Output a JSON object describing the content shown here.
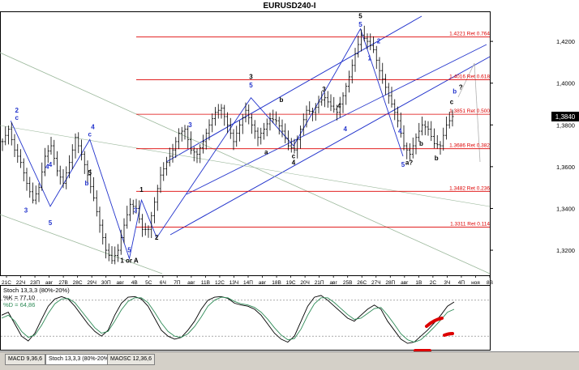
{
  "title": "EURUSD240-I",
  "colors": {
    "fib": "#dd0000",
    "wave": "#2233cc",
    "channel": "#2233cc",
    "candle": "#000000",
    "stoch_k": "#000000",
    "stoch_d": "#2e8b57",
    "marker": "#dd0000",
    "current": "#000000"
  },
  "chart_data": [
    {
      "type": "ohlc",
      "symbol": "EURUSD240-I",
      "ylim": [
        1.308,
        1.434
      ],
      "y_ticks": [
        "1,4200",
        "1,4000",
        "1,3800",
        "1,3600",
        "1,3400",
        "1,3200"
      ],
      "y_tick_values": [
        1.42,
        1.4,
        1.38,
        1.36,
        1.34,
        1.32
      ],
      "current_price": {
        "label": "1,3840",
        "value": 1.384
      },
      "x_ticks": [
        "21С",
        "22Ч",
        "23П",
        "авг",
        "27В",
        "28С",
        "29Ч",
        "30П",
        "авг",
        "4В",
        "5С",
        "6Ч",
        "7П",
        "авг",
        "11В",
        "12С",
        "13Ч",
        "14П",
        "авг",
        "18В",
        "19С",
        "20Ч",
        "21П",
        "авг",
        "25В",
        "26С",
        "27Ч",
        "28П",
        "авг",
        "1В",
        "2С",
        "3Ч",
        "4П",
        "ноя",
        "8В"
      ],
      "fib_levels": [
        {
          "label": "1.4221 Ret 0.764",
          "value": 1.4221
        },
        {
          "label": "1.4016 Ret 0.618",
          "value": 1.4016
        },
        {
          "label": "1.3851 Ret 0.500",
          "value": 1.3851
        },
        {
          "label": "1.3686 Ret 0.382",
          "value": 1.3686
        },
        {
          "label": "1.3482 Ret 0.236",
          "value": 1.3482
        },
        {
          "label": "1.3311 Ret 0.114",
          "value": 1.3311
        }
      ],
      "close_path": [
        [
          0,
          1.372
        ],
        [
          2,
          1.378
        ],
        [
          4,
          1.368
        ],
        [
          6,
          1.362
        ],
        [
          8,
          1.352
        ],
        [
          10,
          1.344
        ],
        [
          12,
          1.35
        ],
        [
          14,
          1.365
        ],
        [
          16,
          1.37
        ],
        [
          18,
          1.358
        ],
        [
          20,
          1.352
        ],
        [
          22,
          1.362
        ],
        [
          24,
          1.374
        ],
        [
          26,
          1.366
        ],
        [
          28,
          1.356
        ],
        [
          30,
          1.345
        ],
        [
          32,
          1.332
        ],
        [
          34,
          1.32
        ],
        [
          36,
          1.315
        ],
        [
          38,
          1.32
        ],
        [
          40,
          1.332
        ],
        [
          42,
          1.342
        ],
        [
          44,
          1.34
        ],
        [
          46,
          1.33
        ],
        [
          48,
          1.33
        ],
        [
          50,
          1.343
        ],
        [
          52,
          1.356
        ],
        [
          54,
          1.362
        ],
        [
          56,
          1.368
        ],
        [
          58,
          1.376
        ],
        [
          60,
          1.378
        ],
        [
          62,
          1.368
        ],
        [
          64,
          1.366
        ],
        [
          66,
          1.372
        ],
        [
          68,
          1.38
        ],
        [
          70,
          1.386
        ],
        [
          72,
          1.388
        ],
        [
          74,
          1.38
        ],
        [
          76,
          1.372
        ],
        [
          78,
          1.38
        ],
        [
          80,
          1.387
        ],
        [
          82,
          1.38
        ],
        [
          84,
          1.374
        ],
        [
          86,
          1.378
        ],
        [
          88,
          1.383
        ],
        [
          90,
          1.382
        ],
        [
          92,
          1.377
        ],
        [
          94,
          1.37
        ],
        [
          96,
          1.368
        ],
        [
          98,
          1.378
        ],
        [
          100,
          1.387
        ],
        [
          102,
          1.386
        ],
        [
          104,
          1.391
        ],
        [
          106,
          1.393
        ],
        [
          108,
          1.389
        ],
        [
          110,
          1.386
        ],
        [
          112,
          1.394
        ],
        [
          114,
          1.403
        ],
        [
          116,
          1.414
        ],
        [
          118,
          1.423
        ],
        [
          120,
          1.42
        ],
        [
          122,
          1.416
        ],
        [
          124,
          1.406
        ],
        [
          126,
          1.398
        ],
        [
          128,
          1.39
        ],
        [
          130,
          1.382
        ],
        [
          132,
          1.37
        ],
        [
          134,
          1.366
        ],
        [
          136,
          1.374
        ],
        [
          138,
          1.38
        ],
        [
          140,
          1.378
        ],
        [
          142,
          1.371
        ],
        [
          144,
          1.37
        ],
        [
          146,
          1.38
        ],
        [
          148,
          1.384
        ]
      ],
      "wave_labels": [
        {
          "t": "2",
          "x": 5,
          "y": 1.386,
          "c": "wave"
        },
        {
          "t": "c",
          "x": 5,
          "y": 1.3825,
          "c": "wave"
        },
        {
          "t": "4",
          "x": 15,
          "y": 1.359,
          "c": "wave"
        },
        {
          "t": "3",
          "x": 8,
          "y": 1.338,
          "c": "wave"
        },
        {
          "t": "4",
          "x": 16,
          "y": 1.36,
          "c": "wave"
        },
        {
          "t": "5",
          "x": 16,
          "y": 1.332,
          "c": "wave"
        },
        {
          "t": "4",
          "x": 30,
          "y": 1.378,
          "c": "wave"
        },
        {
          "t": "c",
          "x": 29,
          "y": 1.3745,
          "c": "wave"
        },
        {
          "t": "5",
          "x": 29,
          "y": 1.356,
          "c": "candle"
        },
        {
          "t": "b",
          "x": 28,
          "y": 1.351,
          "c": "wave"
        },
        {
          "t": "1",
          "x": 46,
          "y": 1.348,
          "c": "candle"
        },
        {
          "t": "3",
          "x": 44,
          "y": 1.338,
          "c": "wave"
        },
        {
          "t": "5",
          "x": 42,
          "y": 1.319,
          "c": "wave"
        },
        {
          "t": "1 or A",
          "x": 42,
          "y": 1.314,
          "c": "candle"
        },
        {
          "t": "2",
          "x": 51,
          "y": 1.325,
          "c": "candle"
        },
        {
          "t": "3",
          "x": 62,
          "y": 1.379,
          "c": "wave"
        },
        {
          "t": "3",
          "x": 82,
          "y": 1.402,
          "c": "candle"
        },
        {
          "t": "5",
          "x": 82,
          "y": 1.398,
          "c": "wave"
        },
        {
          "t": "a",
          "x": 87,
          "y": 1.366,
          "c": "candle"
        },
        {
          "t": "b",
          "x": 92,
          "y": 1.391,
          "c": "candle"
        },
        {
          "t": "c",
          "x": 96,
          "y": 1.364,
          "c": "candle"
        },
        {
          "t": "4",
          "x": 96,
          "y": 1.361,
          "c": "candle"
        },
        {
          "t": "3",
          "x": 106,
          "y": 1.396,
          "c": "candle"
        },
        {
          "t": "4",
          "x": 111,
          "y": 1.388,
          "c": "candle"
        },
        {
          "t": "5",
          "x": 118,
          "y": 1.431,
          "c": "candle"
        },
        {
          "t": "5",
          "x": 118,
          "y": 1.427,
          "c": "wave"
        },
        {
          "t": "2",
          "x": 124,
          "y": 1.419,
          "c": "wave"
        },
        {
          "t": "1",
          "x": 121,
          "y": 1.411,
          "c": "wave"
        },
        {
          "t": "4",
          "x": 113,
          "y": 1.377,
          "c": "wave"
        },
        {
          "t": "4",
          "x": 131,
          "y": 1.376,
          "c": "wave"
        },
        {
          "t": "5",
          "x": 132,
          "y": 1.36,
          "c": "wave"
        },
        {
          "t": "a?",
          "x": 134,
          "y": 1.361,
          "c": "candle"
        },
        {
          "t": "b",
          "x": 138,
          "y": 1.37,
          "c": "candle"
        },
        {
          "t": "b",
          "x": 143,
          "y": 1.363,
          "c": "candle"
        },
        {
          "t": "c",
          "x": 148,
          "y": 1.39,
          "c": "candle"
        },
        {
          "t": "b",
          "x": 149,
          "y": 1.395,
          "c": "wave"
        },
        {
          "t": "?",
          "x": 151,
          "y": 1.397,
          "c": "candle"
        }
      ],
      "wave_path": [
        [
          3,
          1.382
        ],
        [
          16,
          1.341
        ],
        [
          29,
          1.373
        ],
        [
          42,
          1.316
        ],
        [
          46,
          1.344
        ],
        [
          51,
          1.326
        ],
        [
          82,
          1.393
        ],
        [
          96,
          1.37
        ],
        [
          118,
          1.426
        ],
        [
          132,
          1.365
        ]
      ]
    },
    {
      "type": "line",
      "indicator": "Stoch 13,3,3 (80%-20%)",
      "ylim": [
        0,
        100
      ],
      "levels": [
        80,
        20
      ],
      "series": [
        {
          "name": "%K",
          "label": "%K = 77,10",
          "values": [
            55,
            60,
            40,
            20,
            12,
            25,
            48,
            70,
            82,
            86,
            82,
            70,
            55,
            40,
            28,
            20,
            30,
            55,
            75,
            85,
            86,
            82,
            70,
            50,
            30,
            20,
            15,
            18,
            30,
            45,
            65,
            80,
            85,
            86,
            83,
            75,
            72,
            70,
            65,
            55,
            40,
            25,
            15,
            10,
            20,
            45,
            70,
            85,
            88,
            80,
            70,
            60,
            50,
            45,
            55,
            65,
            72,
            65,
            45,
            30,
            15,
            8,
            10,
            20,
            30,
            42,
            55,
            70,
            77
          ]
        },
        {
          "name": "%D",
          "label": "%D = 64,86",
          "values": [
            50,
            55,
            45,
            28,
            18,
            22,
            38,
            58,
            74,
            82,
            83,
            76,
            62,
            48,
            34,
            25,
            28,
            45,
            64,
            78,
            84,
            84,
            76,
            60,
            42,
            28,
            20,
            18,
            24,
            36,
            52,
            70,
            80,
            85,
            84,
            78,
            74,
            72,
            68,
            60,
            48,
            34,
            22,
            14,
            16,
            32,
            55,
            74,
            84,
            84,
            76,
            66,
            56,
            48,
            50,
            58,
            66,
            68,
            55,
            40,
            24,
            14,
            10,
            14,
            24,
            35,
            47,
            60,
            64.86
          ]
        }
      ]
    }
  ],
  "tabs": [
    "MACD 9,36,6",
    "Stoch 13,3,3 (80%-20%)",
    "MAOSC 12,36,6"
  ]
}
